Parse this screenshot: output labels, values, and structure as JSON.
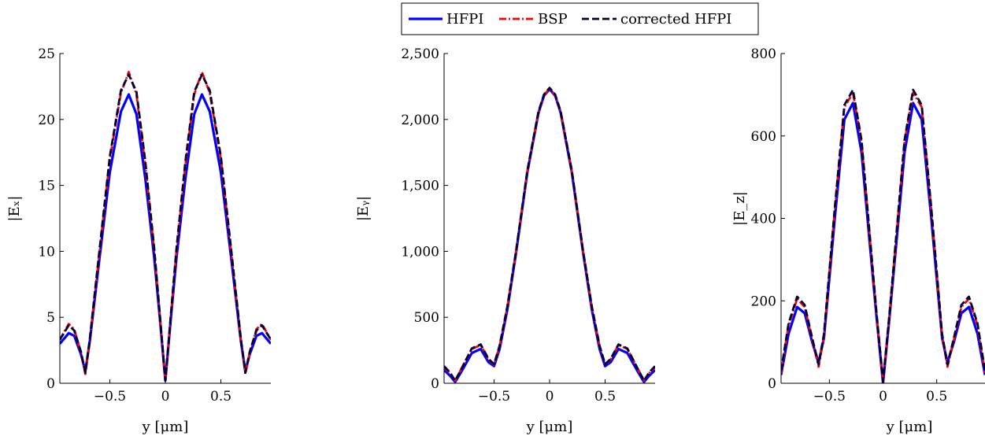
{
  "legend": {
    "items": [
      {
        "label": "HFPI",
        "color": "#0000ff",
        "dash": "solid"
      },
      {
        "label": "BSP",
        "color": "#ff0000",
        "dash": "dashdot"
      },
      {
        "label": "corrected HFPI",
        "color": "#000033",
        "dash": "dashed"
      }
    ]
  },
  "chart_data": [
    {
      "type": "line",
      "xlabel": "y [μm]",
      "ylabel": "|Eₓ|",
      "xlim": [
        -0.95,
        0.95
      ],
      "ylim": [
        0,
        25
      ],
      "xticks": [
        -0.5,
        0,
        0.5
      ],
      "xtick_labels": [
        "−0.5",
        "0",
        "0.5"
      ],
      "yticks": [
        0,
        5,
        10,
        15,
        20,
        25
      ],
      "ytick_labels": [
        "0",
        "5",
        "10",
        "15",
        "20",
        "25"
      ],
      "x": [
        -0.95,
        -0.87,
        -0.82,
        -0.76,
        -0.72,
        -0.68,
        -0.6,
        -0.5,
        -0.4,
        -0.33,
        -0.26,
        -0.18,
        -0.1,
        -0.05,
        0,
        0.05,
        0.1,
        0.18,
        0.26,
        0.33,
        0.4,
        0.5,
        0.6,
        0.68,
        0.72,
        0.76,
        0.82,
        0.87,
        0.95
      ],
      "series": [
        {
          "name": "HFPI",
          "values": [
            3.0,
            3.8,
            3.6,
            2.2,
            0.9,
            3.2,
            9.0,
            16.0,
            20.6,
            21.9,
            20.4,
            15.5,
            9.5,
            5.0,
            0.2,
            5.0,
            9.5,
            15.5,
            20.4,
            21.9,
            20.6,
            16.0,
            9.0,
            3.2,
            0.9,
            2.2,
            3.6,
            3.8,
            3.0
          ]
        },
        {
          "name": "BSP",
          "values": [
            3.3,
            4.5,
            4.1,
            2.3,
            0.7,
            3.3,
            9.4,
            17.0,
            22.0,
            23.6,
            21.9,
            16.5,
            10.0,
            5.2,
            0.1,
            5.2,
            10.0,
            16.5,
            21.9,
            23.6,
            22.0,
            17.0,
            9.4,
            3.3,
            0.7,
            2.3,
            4.1,
            4.5,
            3.3
          ]
        },
        {
          "name": "corrected HFPI",
          "values": [
            3.3,
            4.4,
            4.0,
            2.4,
            0.8,
            3.4,
            9.6,
            17.2,
            22.2,
            23.4,
            22.1,
            16.8,
            10.2,
            5.3,
            0.2,
            5.3,
            10.2,
            16.8,
            22.1,
            23.4,
            22.2,
            17.2,
            9.6,
            3.4,
            0.8,
            2.4,
            4.0,
            4.4,
            3.3
          ]
        }
      ]
    },
    {
      "type": "line",
      "xlabel": "y [μm]",
      "ylabel": "|Eᵧ|",
      "xlim": [
        -0.95,
        0.95
      ],
      "ylim": [
        0,
        2500
      ],
      "xticks": [
        -0.5,
        0,
        0.5
      ],
      "xtick_labels": [
        "−0.5",
        "0",
        "0.5"
      ],
      "yticks": [
        0,
        500,
        1000,
        1500,
        2000,
        2500
      ],
      "ytick_labels": [
        "0",
        "500",
        "1,000",
        "1,500",
        "2,000",
        "2,500"
      ],
      "x": [
        -0.95,
        -0.9,
        -0.85,
        -0.8,
        -0.7,
        -0.62,
        -0.55,
        -0.5,
        -0.45,
        -0.38,
        -0.3,
        -0.2,
        -0.1,
        -0.05,
        0,
        0.05,
        0.1,
        0.2,
        0.3,
        0.38,
        0.45,
        0.5,
        0.55,
        0.62,
        0.7,
        0.8,
        0.85,
        0.9,
        0.95
      ],
      "series": [
        {
          "name": "HFPI",
          "values": [
            100,
            60,
            10,
            80,
            230,
            260,
            160,
            130,
            260,
            560,
            1000,
            1600,
            2050,
            2180,
            2230,
            2180,
            2050,
            1600,
            1000,
            560,
            260,
            130,
            160,
            260,
            230,
            80,
            10,
            60,
            100
          ]
        },
        {
          "name": "BSP",
          "values": [
            120,
            80,
            20,
            100,
            260,
            290,
            180,
            140,
            280,
            580,
            1010,
            1610,
            2055,
            2185,
            2235,
            2185,
            2055,
            1610,
            1010,
            580,
            280,
            140,
            180,
            290,
            260,
            100,
            20,
            80,
            120
          ]
        },
        {
          "name": "corrected HFPI",
          "values": [
            130,
            85,
            20,
            100,
            265,
            295,
            185,
            145,
            285,
            585,
            1015,
            1615,
            2060,
            2190,
            2240,
            2190,
            2060,
            1615,
            1015,
            585,
            285,
            145,
            185,
            295,
            265,
            100,
            20,
            85,
            130
          ]
        }
      ]
    },
    {
      "type": "line",
      "xlabel": "y [μm]",
      "ylabel": "|E_z|",
      "xlim": [
        -0.95,
        0.95
      ],
      "ylim": [
        0,
        800
      ],
      "xticks": [
        -0.5,
        0,
        0.5
      ],
      "xtick_labels": [
        "−0.5",
        "0",
        "0.5"
      ],
      "yticks": [
        0,
        200,
        400,
        600,
        800
      ],
      "ytick_labels": [
        "0",
        "200",
        "400",
        "600",
        "800"
      ],
      "x": [
        -0.95,
        -0.88,
        -0.8,
        -0.73,
        -0.66,
        -0.6,
        -0.55,
        -0.45,
        -0.36,
        -0.28,
        -0.2,
        -0.12,
        -0.06,
        0,
        0.06,
        0.12,
        0.2,
        0.28,
        0.36,
        0.45,
        0.55,
        0.6,
        0.66,
        0.73,
        0.8,
        0.88,
        0.95
      ],
      "series": [
        {
          "name": "HFPI",
          "values": [
            20,
            120,
            185,
            170,
            100,
            50,
            110,
            400,
            640,
            680,
            560,
            330,
            160,
            0,
            160,
            330,
            560,
            680,
            640,
            400,
            110,
            50,
            100,
            170,
            185,
            120,
            20
          ]
        },
        {
          "name": "BSP",
          "values": [
            25,
            140,
            205,
            185,
            105,
            40,
            115,
            420,
            670,
            705,
            585,
            345,
            165,
            5,
            165,
            345,
            585,
            705,
            670,
            420,
            115,
            40,
            105,
            185,
            205,
            140,
            25
          ]
        },
        {
          "name": "corrected HFPI",
          "values": [
            30,
            145,
            210,
            190,
            110,
            45,
            120,
            425,
            675,
            712,
            590,
            350,
            170,
            5,
            170,
            350,
            590,
            712,
            675,
            425,
            120,
            45,
            110,
            190,
            210,
            145,
            30
          ]
        }
      ]
    }
  ]
}
